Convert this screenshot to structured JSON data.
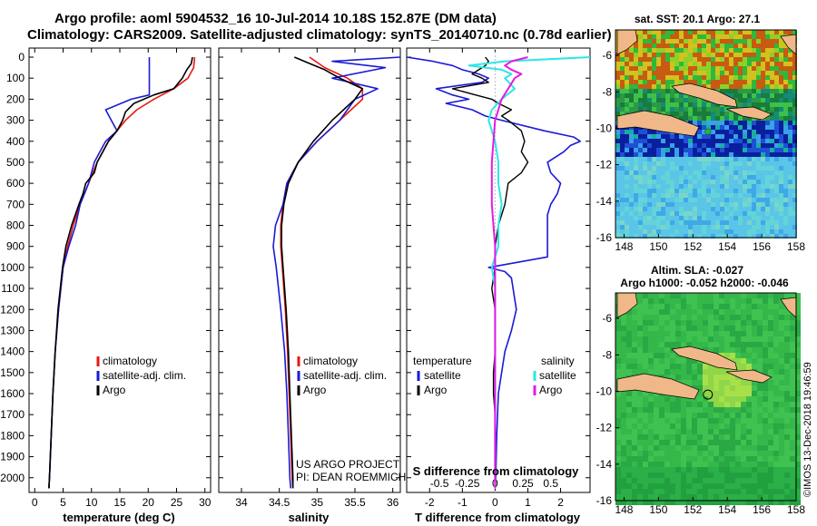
{
  "header": {
    "title_line1": "Argo profile: aoml 5904532_16 10-Jul-2014 10.18S 152.87E (DM data)",
    "title_line2": "Climatology: CARS2009. Satellite-adjusted climatology: synTS_20140710.nc (0.78d earlier)"
  },
  "footer": {
    "project": "US ARGO PROJECT",
    "pi": "PI: DEAN ROEMMICH",
    "credit": "©IMOS 13-Dec-2018 19:46:59"
  },
  "colors": {
    "climatology": "#e8190f",
    "satellite": "#1a1ad6",
    "argo": "#000000",
    "sat_salinity": "#2ee6e6",
    "argo_salinity": "#e619e6"
  },
  "chart_data": [
    {
      "id": "temperature",
      "type": "line",
      "xlabel": "temperature (deg C)",
      "xlim": [
        -1,
        31
      ],
      "ylim": [
        2070,
        0
      ],
      "xticks": [
        "0",
        "5",
        "10",
        "15",
        "20",
        "25",
        "30"
      ],
      "xtick_values": [
        0,
        5,
        10,
        15,
        20,
        25,
        30
      ],
      "yticks": [
        "0",
        "100",
        "200",
        "300",
        "400",
        "500",
        "600",
        "700",
        "800",
        "900",
        "1000",
        "1100",
        "1200",
        "1300",
        "1400",
        "1500",
        "1600",
        "1700",
        "1800",
        "1900",
        "2000"
      ],
      "legend": [
        "climatology",
        "satellite-adj. clim.",
        "Argo"
      ],
      "series": [
        {
          "name": "climatology",
          "depth": [
            0,
            50,
            100,
            150,
            200,
            250,
            300,
            400,
            500,
            600,
            700,
            800,
            900,
            1000,
            1200,
            1400,
            1600,
            1800,
            2000,
            2050
          ],
          "values": [
            28.2,
            28,
            27,
            24.5,
            21,
            18,
            16,
            13,
            11,
            9.5,
            8,
            6.8,
            5.8,
            5,
            4.2,
            3.6,
            3.2,
            2.9,
            2.6,
            2.5
          ]
        },
        {
          "name": "satellite-adj. clim.",
          "depth": [
            0,
            100,
            150,
            180,
            200,
            250,
            300,
            350,
            400,
            450,
            500,
            600,
            700,
            800,
            900,
            1000,
            1200,
            1400,
            1600,
            1800,
            2000,
            2050
          ],
          "values": [
            20.2,
            20.2,
            20.2,
            20.2,
            17,
            12.5,
            13.5,
            14.5,
            12.5,
            11.5,
            10.5,
            9.5,
            8,
            7.2,
            6,
            5,
            4.2,
            3.6,
            3.2,
            2.9,
            2.6,
            2.5
          ]
        },
        {
          "name": "Argo",
          "depth": [
            0,
            30,
            60,
            100,
            150,
            180,
            220,
            260,
            300,
            350,
            400,
            450,
            500,
            550,
            600,
            650,
            700,
            800,
            900,
            1000,
            1200,
            1400,
            1600,
            1800,
            2000,
            2050
          ],
          "values": [
            27.8,
            27.6,
            26.8,
            26,
            24.5,
            21,
            17.5,
            16,
            15.5,
            14.5,
            13,
            12,
            11,
            10.5,
            9,
            8.5,
            7.8,
            6.5,
            5.5,
            4.9,
            4.1,
            3.6,
            3.2,
            2.9,
            2.6,
            2.5
          ]
        }
      ]
    },
    {
      "id": "salinity",
      "type": "line",
      "xlabel": "salinity",
      "xlim": [
        33.7,
        36.1
      ],
      "ylim": [
        2070,
        0
      ],
      "xticks": [
        "34",
        "34.5",
        "35",
        "35.5",
        "36"
      ],
      "xtick_values": [
        34,
        34.5,
        35,
        35.5,
        36
      ],
      "legend": [
        "climatology",
        "satellite-adj. clim.",
        "Argo"
      ],
      "series": [
        {
          "name": "climatology",
          "depth": [
            0,
            50,
            100,
            150,
            200,
            300,
            400,
            500,
            600,
            700,
            800,
            900,
            1000,
            1200,
            1400,
            1600,
            1800,
            2000,
            2050
          ],
          "values": [
            34.9,
            35.1,
            35.4,
            35.6,
            35.6,
            35.3,
            35,
            34.75,
            34.6,
            34.55,
            34.52,
            34.52,
            34.54,
            34.58,
            34.61,
            34.63,
            34.65,
            34.67,
            34.68
          ]
        },
        {
          "name": "satellite-adj. clim.",
          "depth": [
            0,
            20,
            50,
            100,
            150,
            200,
            250,
            300,
            400,
            500,
            600,
            700,
            800,
            900,
            1000,
            1200,
            1400,
            1600,
            1800,
            2000,
            2050
          ],
          "values": [
            36.1,
            35.2,
            35.9,
            35.2,
            35.8,
            35.5,
            35.4,
            35.3,
            35,
            34.75,
            34.6,
            34.55,
            34.45,
            34.42,
            34.46,
            34.52,
            34.57,
            34.6,
            34.62,
            34.64,
            34.65
          ]
        },
        {
          "name": "Argo",
          "depth": [
            0,
            30,
            60,
            100,
            150,
            200,
            250,
            300,
            400,
            500,
            600,
            700,
            800,
            900,
            1000,
            1200,
            1400,
            1600,
            1800,
            2000,
            2050
          ],
          "values": [
            34.7,
            34.9,
            35.1,
            35.3,
            35.6,
            35.5,
            35.35,
            35.2,
            34.95,
            34.75,
            34.62,
            34.56,
            34.53,
            34.53,
            34.55,
            34.59,
            34.62,
            34.64,
            34.66,
            34.68,
            34.68
          ]
        }
      ]
    },
    {
      "id": "difference",
      "type": "line",
      "xlabel": "T difference from climatology",
      "x2label": "S difference from climatology",
      "xlim": [
        -2.7,
        2.9
      ],
      "ylim": [
        2070,
        0
      ],
      "xticks": [
        "-2",
        "-1",
        "0",
        "1",
        "2"
      ],
      "xtick_values": [
        -2,
        -1,
        0,
        1,
        2
      ],
      "x2ticks": [
        "-0.5",
        "-0.25",
        "0",
        "0.25",
        "0.5"
      ],
      "x2tick_values": [
        -1.7,
        -0.85,
        0,
        0.85,
        1.7
      ],
      "legend_temperature": {
        "title": "temperature",
        "items": [
          "satellite",
          "Argo"
        ]
      },
      "legend_salinity": {
        "title": "salinity",
        "items": [
          "satellite",
          "Argo"
        ]
      },
      "series": [
        {
          "name": "T satellite",
          "depth": [
            0,
            20,
            40,
            60,
            80,
            100,
            120,
            150,
            180,
            200,
            220,
            250,
            280,
            300,
            350,
            380,
            400,
            420,
            450,
            500,
            550,
            600,
            650,
            700,
            750,
            800,
            850,
            900,
            950,
            1000,
            1020,
            1050,
            1100,
            1200,
            1300,
            1400,
            1600,
            1800,
            2000,
            2050
          ],
          "values": [
            -2.7,
            -1.9,
            -1.3,
            -1.0,
            -0.5,
            -0.2,
            -0.4,
            -1.8,
            -1.3,
            -0.8,
            -1.5,
            -0.7,
            -0.3,
            0.2,
            1.5,
            2.4,
            2.6,
            2.3,
            2.1,
            1.6,
            1.7,
            2.0,
            1.9,
            1.7,
            1.6,
            1.6,
            1.6,
            1.6,
            1.6,
            -0.2,
            0.3,
            0.5,
            0.55,
            0.65,
            0.5,
            0.3,
            0.1,
            0.05,
            0.02,
            0.0
          ]
        },
        {
          "name": "T Argo",
          "depth": [
            0,
            20,
            40,
            60,
            80,
            100,
            120,
            150,
            180,
            200,
            220,
            250,
            280,
            300,
            350,
            400,
            450,
            500,
            550,
            600,
            700,
            800,
            900,
            1000,
            1100,
            1200,
            1300,
            1400,
            1500,
            1600,
            1700,
            1800,
            1900,
            2000,
            2050
          ],
          "values": [
            -0.3,
            -0.2,
            -0.3,
            -0.5,
            -0.7,
            -0.4,
            -0.2,
            -1.3,
            -0.6,
            -0.1,
            0.1,
            0.5,
            0.2,
            0.4,
            0.8,
            0.9,
            0.8,
            1.0,
            0.8,
            0.4,
            0.3,
            0.1,
            0.0,
            0.0,
            -0.1,
            0.0,
            0.0,
            0.0,
            -0.05,
            -0.05,
            0.0,
            0.0,
            0.0,
            0.0,
            0.0
          ]
        },
        {
          "name": "S satellite",
          "depth": [
            0,
            20,
            40,
            60,
            80,
            100,
            150,
            200,
            250,
            300,
            400,
            500,
            600,
            700,
            800,
            900,
            1000,
            1100,
            1200,
            1300,
            1400,
            1500,
            1600,
            1800,
            2000,
            2050
          ],
          "values": [
            2.9,
            0.3,
            -0.8,
            0.2,
            0.5,
            0.3,
            0.6,
            0.2,
            -0.1,
            -0.2,
            0.0,
            0.1,
            0.1,
            0.2,
            0.1,
            0.1,
            -0.1,
            0.0,
            0.0,
            0.0,
            0.0,
            0.0,
            0.0,
            0.0,
            0.0,
            0.0
          ]
        },
        {
          "name": "S Argo",
          "depth": [
            0,
            20,
            40,
            60,
            80,
            100,
            150,
            200,
            250,
            300,
            400,
            500,
            600,
            700,
            800,
            900,
            1000,
            1200,
            1400,
            1600,
            1800,
            2000,
            2050
          ],
          "values": [
            1.0,
            0.5,
            0.3,
            0.5,
            0.8,
            0.6,
            0.4,
            0.2,
            0.1,
            0.0,
            -0.05,
            -0.1,
            -0.1,
            -0.1,
            -0.05,
            0.0,
            0.0,
            0.0,
            0.0,
            0.0,
            0.0,
            0.0,
            0.0
          ]
        }
      ]
    },
    {
      "id": "sst_map",
      "type": "heatmap",
      "title": "sat. SST: 20.1 Argo: 27.1",
      "xticks": [
        "148",
        "150",
        "152",
        "154",
        "156",
        "158"
      ],
      "yticks": [
        "-6",
        "-8",
        "-10",
        "-12",
        "-14",
        "-16"
      ],
      "x_range": [
        147.5,
        158
      ],
      "y_range": [
        -16,
        -4.6
      ]
    },
    {
      "id": "sla_map",
      "type": "heatmap",
      "title": "Altim. SLA: -0.027",
      "subtitle": "Argo h1000: -0.052 h2000: -0.046",
      "xticks": [
        "148",
        "150",
        "152",
        "154",
        "156",
        "158"
      ],
      "yticks": [
        "-6",
        "-8",
        "-10",
        "-12",
        "-14",
        "-16"
      ],
      "x_range": [
        147.5,
        158
      ],
      "y_range": [
        -16,
        -4.6
      ]
    }
  ]
}
